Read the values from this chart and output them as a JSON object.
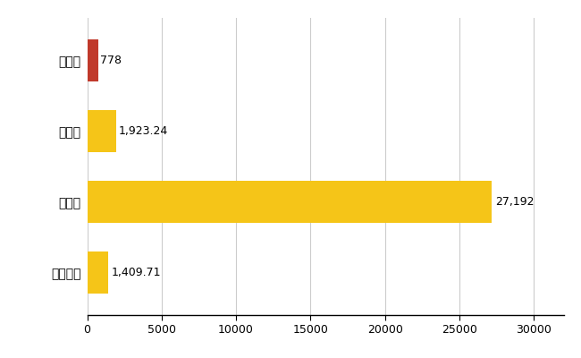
{
  "categories": [
    "全国平均",
    "県最大",
    "県平均",
    "大川市"
  ],
  "values": [
    1409.71,
    27192,
    1923.24,
    778
  ],
  "bar_colors": [
    "#F5C518",
    "#F5C518",
    "#F5C518",
    "#C0392B"
  ],
  "labels": [
    "1,409.71",
    "27,192",
    "1,923.24",
    "778"
  ],
  "xlim": [
    0,
    32000
  ],
  "xticks": [
    0,
    5000,
    10000,
    15000,
    20000,
    25000,
    30000
  ],
  "xtick_labels": [
    "0",
    "5000",
    "10000",
    "15000",
    "20000",
    "25000",
    "30000"
  ],
  "grid_color": "#CCCCCC",
  "background_color": "#FFFFFF",
  "bar_height": 0.6,
  "label_fontsize": 9,
  "tick_fontsize": 9,
  "ytick_fontsize": 10
}
